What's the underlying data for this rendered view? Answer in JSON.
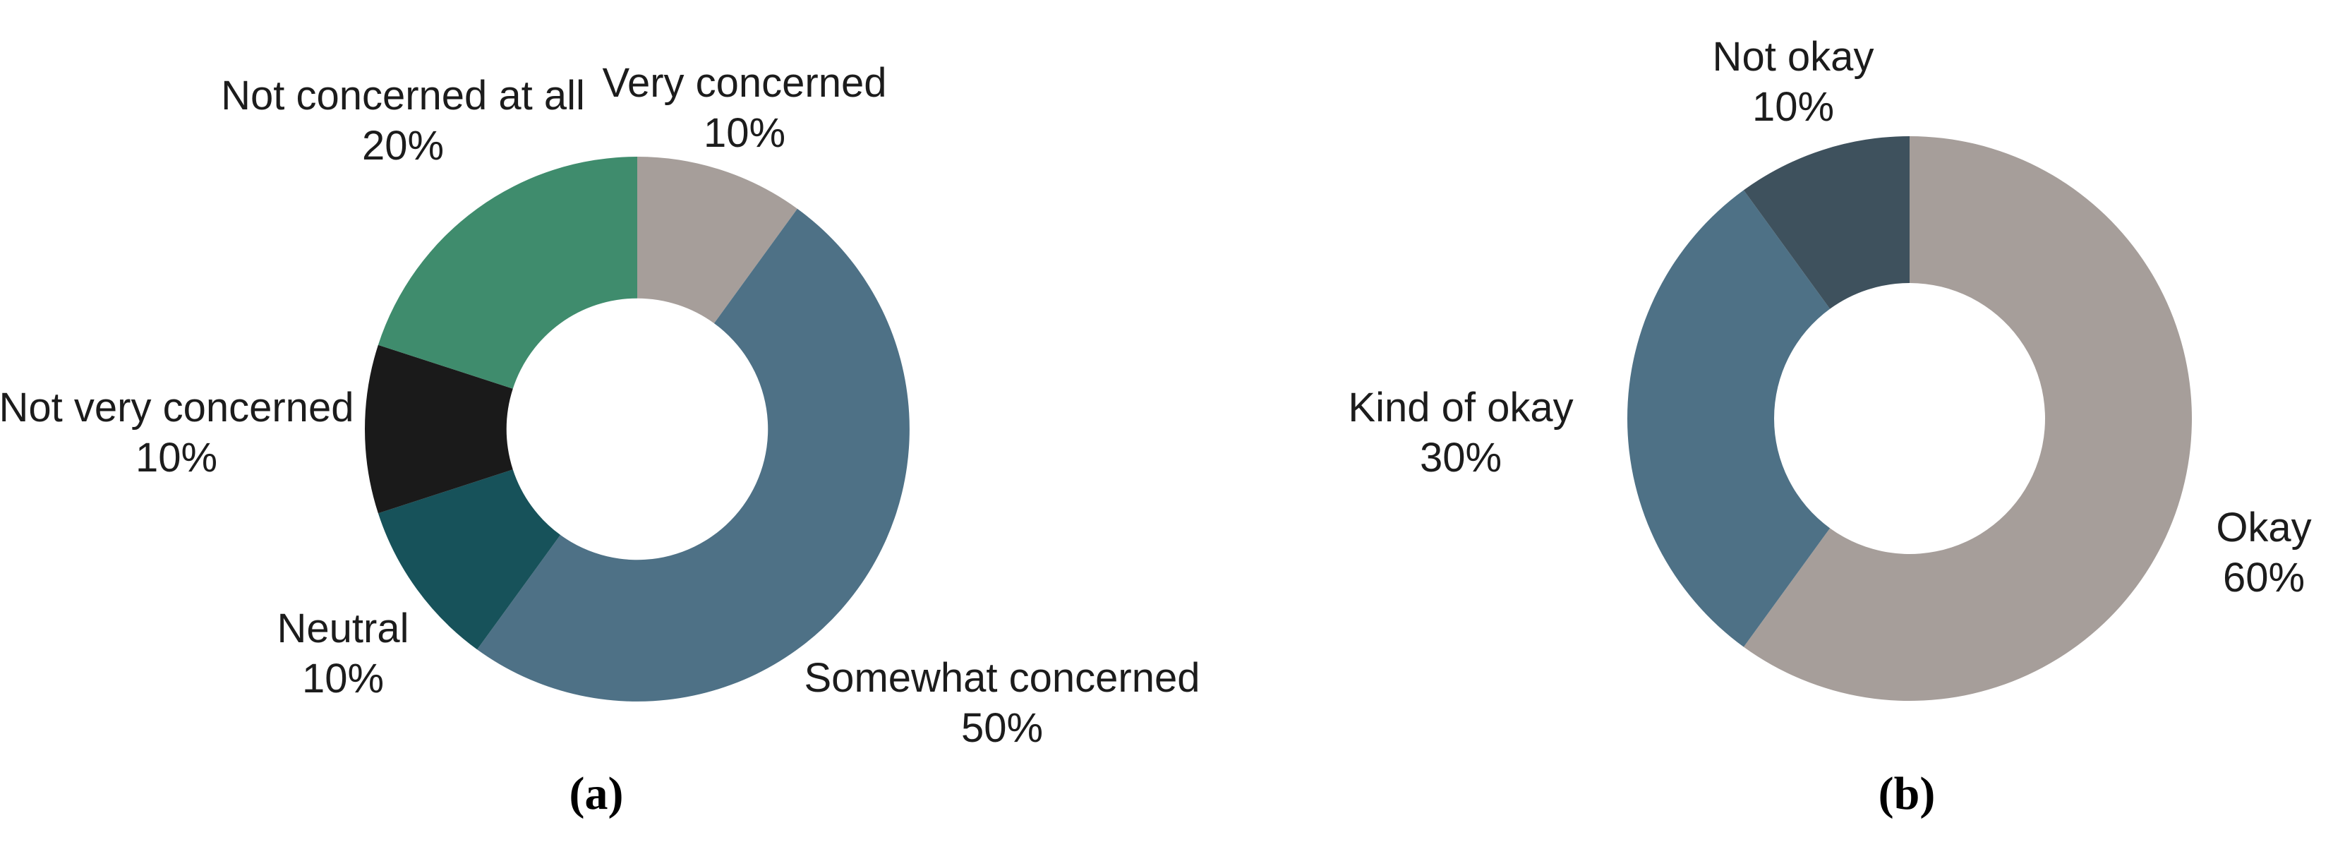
{
  "figure": {
    "background_color": "#ffffff",
    "text_color": "#1c1c1c",
    "panels": [
      "a",
      "b"
    ]
  },
  "chart_data": [
    {
      "id": "a",
      "type": "pie",
      "subtype": "donut",
      "caption": "(a)",
      "start_angle_deg": 0,
      "direction": "clockwise",
      "hole_ratio": 0.48,
      "legend": "none",
      "labels_position": "outside",
      "slices": [
        {
          "label": "Very concerned",
          "value_pct": 10,
          "pct_text": "10%",
          "color": "#a69e9a"
        },
        {
          "label": "Somewhat concerned",
          "value_pct": 50,
          "pct_text": "50%",
          "color": "#4e7186"
        },
        {
          "label": "Neutral",
          "value_pct": 10,
          "pct_text": "10%",
          "color": "#17525a"
        },
        {
          "label": "Not very concerned",
          "value_pct": 10,
          "pct_text": "10%",
          "color": "#1a1a1a"
        },
        {
          "label": "Not concerned at all",
          "value_pct": 20,
          "pct_text": "20%",
          "color": "#3f8c6d"
        }
      ]
    },
    {
      "id": "b",
      "type": "pie",
      "subtype": "donut",
      "caption": "(b)",
      "start_angle_deg": 0,
      "direction": "clockwise",
      "hole_ratio": 0.48,
      "legend": "none",
      "labels_position": "outside",
      "slices": [
        {
          "label": "Okay",
          "value_pct": 60,
          "pct_text": "60%",
          "color": "#a69e9a"
        },
        {
          "label": "Kind of okay",
          "value_pct": 30,
          "pct_text": "30%",
          "color": "#4e7186"
        },
        {
          "label": "Not okay",
          "value_pct": 10,
          "pct_text": "10%",
          "color": "#3e515d"
        }
      ]
    }
  ]
}
